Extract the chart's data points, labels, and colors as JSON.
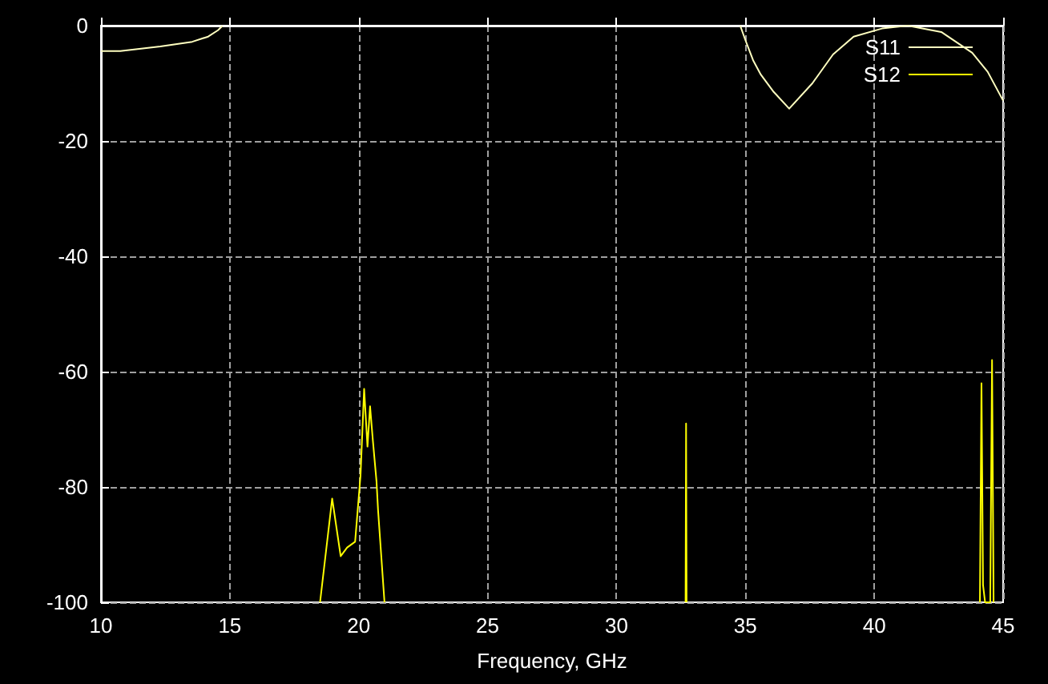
{
  "chart_data": {
    "type": "line",
    "xlabel": "Frequency, GHz",
    "xlim": [
      10,
      45
    ],
    "xticks": [
      10,
      15,
      20,
      25,
      30,
      35,
      40,
      45
    ],
    "ylim": [
      -100,
      0
    ],
    "yticks": [
      -100,
      -80,
      -60,
      -40,
      -20,
      0
    ],
    "grid": true,
    "legend": "top right",
    "marker": "none",
    "line_style": "solid",
    "series": [
      {
        "name": "S11",
        "color": "#ffffc0",
        "x": [
          10,
          10.75,
          12.3,
          13.54,
          14.16,
          14.54,
          14.72,
          25,
          34.8,
          35.0,
          35.3,
          35.6,
          36.1,
          36.7,
          37.6,
          38.4,
          39.2,
          40.3,
          41.3,
          42.6,
          43.8,
          44.4,
          45
        ],
        "values": [
          -4.4,
          -4.4,
          -3.6,
          -2.8,
          -1.9,
          -0.8,
          0,
          null,
          0,
          -2.5,
          -6,
          -8.5,
          -11.5,
          -14.4,
          -10,
          -5,
          -1.9,
          -0.5,
          0,
          -1.1,
          -4.7,
          -8,
          -13
        ]
      },
      {
        "name": "S12",
        "color": "#ffff00",
        "x": [
          18.5,
          18.97,
          19.3,
          19.55,
          19.86,
          20.07,
          20.21,
          20.34,
          20.44,
          20.55,
          20.69,
          20.75,
          21.0,
          26,
          32.68,
          32.7,
          32.72,
          38,
          44.1,
          44.16,
          44.22,
          44.3,
          44.5,
          44.57,
          44.63
        ],
        "values": [
          -100,
          -82,
          -92,
          -90.5,
          -89.5,
          -78,
          -63,
          -73,
          -66,
          -72,
          -79,
          -84,
          -100,
          null,
          -100,
          -69,
          -100,
          null,
          -100,
          -62,
          -97,
          -100,
          -100,
          -58,
          -100
        ]
      }
    ]
  }
}
